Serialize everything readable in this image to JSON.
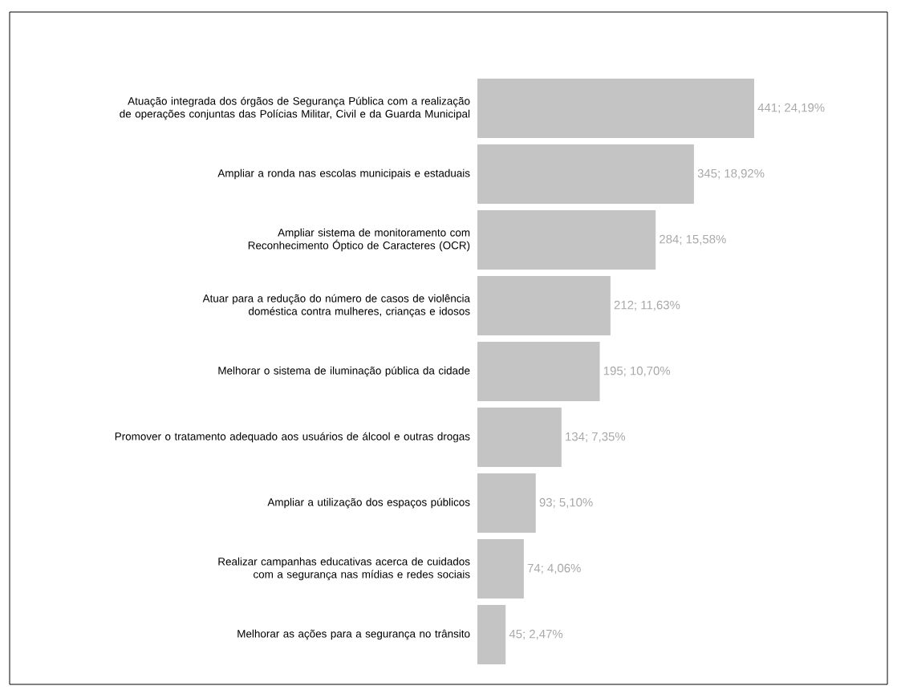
{
  "chart_data": {
    "type": "bar",
    "orientation": "horizontal",
    "categories": [
      "Atuação integrada dos órgãos de Segurança Pública com a realização de operações conjuntas das Polícias Militar, Civil e da Guarda Municipal",
      "Ampliar a ronda nas escolas municipais e estaduais",
      "Ampliar sistema de monitoramento com Reconhecimento Óptico de Caracteres (OCR)",
      "Atuar para a redução do número de casos de violência doméstica contra mulheres, crianças e idosos",
      "Melhorar o sistema de iluminação pública da cidade",
      "Promover o tratamento adequado aos usuários de álcool e outras drogas",
      "Ampliar a utilização dos espaços públicos",
      "Realizar campanhas educativas acerca de cuidados com a segurança nas mídias e redes sociais",
      "Melhorar as ações para a segurança no trânsito"
    ],
    "values": [
      441,
      345,
      284,
      212,
      195,
      134,
      93,
      74,
      45
    ],
    "value_labels": [
      "441; 24,19%",
      "345; 18,92%",
      "284; 15,58%",
      "212; 11,63%",
      "195; 10,70%",
      "134; 7,35%",
      "93; 5,10%",
      "74; 4,06%",
      "45; 2,47%"
    ],
    "color": "#c4c4c4"
  }
}
